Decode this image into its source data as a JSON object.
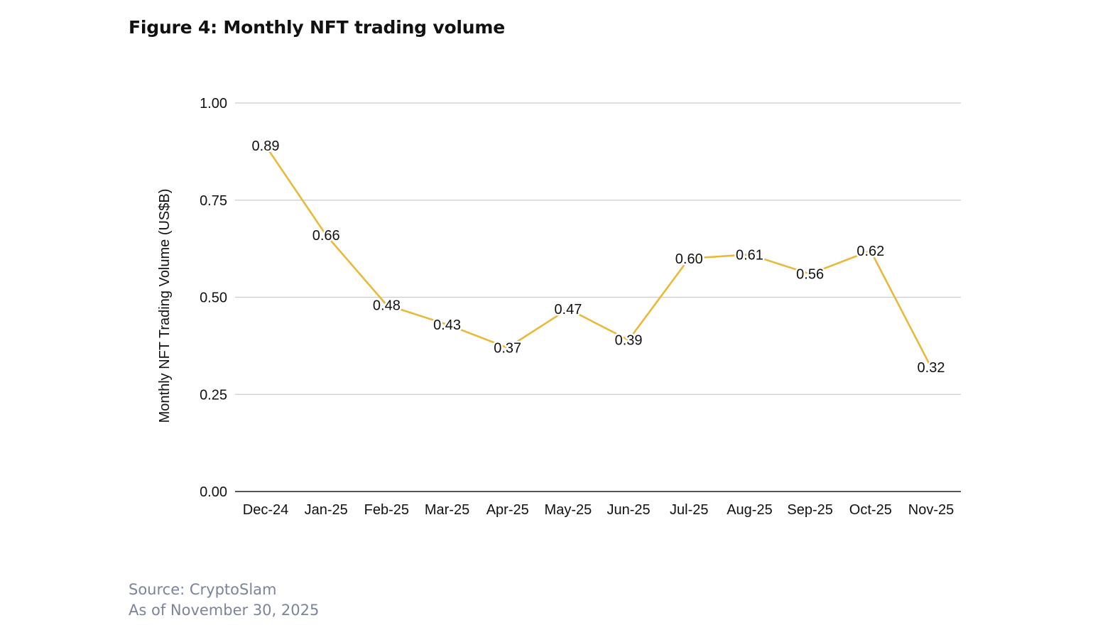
{
  "figure": {
    "title": "Figure 4: Monthly NFT trading volume",
    "source": "Source: CryptoSlam",
    "as_of": "As of November 30, 2025"
  },
  "colors": {
    "line": "#e8b93a",
    "gridline": "#cccccc",
    "axis": "#555555",
    "footer_text": "#7b8599"
  },
  "chart_data": {
    "type": "line",
    "title": "Figure 4: Monthly NFT trading volume",
    "xlabel": "",
    "ylabel": "Monthly NFT Trading Volume (US$B)",
    "categories": [
      "Dec-24",
      "Jan-25",
      "Feb-25",
      "Mar-25",
      "Apr-25",
      "May-25",
      "Jun-25",
      "Jul-25",
      "Aug-25",
      "Sep-25",
      "Oct-25",
      "Nov-25"
    ],
    "series": [
      {
        "name": "Monthly NFT Trading Volume (US$B)",
        "values": [
          0.89,
          0.66,
          0.48,
          0.43,
          0.37,
          0.47,
          0.39,
          0.6,
          0.61,
          0.56,
          0.62,
          0.32
        ],
        "labels": [
          "0.89",
          "0.66",
          "0.48",
          "0.43",
          "0.37",
          "0.47",
          "0.39",
          "0.60",
          "0.61",
          "0.56",
          "0.62",
          "0.32"
        ]
      }
    ],
    "ylim": [
      0,
      1.0
    ],
    "yticks": [
      0,
      0.25,
      0.5,
      0.75,
      1.0
    ],
    "ytick_labels": [
      "0.00",
      "0.25",
      "0.50",
      "0.75",
      "1.00"
    ],
    "grid": true,
    "legend": "none",
    "data_labels": true
  }
}
